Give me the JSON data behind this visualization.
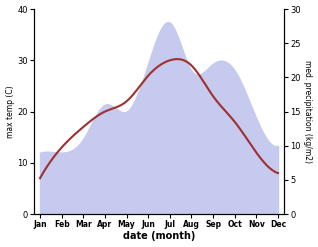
{
  "months": [
    "Jan",
    "Feb",
    "Mar",
    "Apr",
    "May",
    "Jun",
    "Jul",
    "Aug",
    "Sep",
    "Oct",
    "Nov",
    "Dec"
  ],
  "max_temp": [
    7,
    13,
    17,
    20,
    22,
    27,
    30,
    29,
    23,
    18,
    12,
    8
  ],
  "precipitation": [
    9,
    9,
    11,
    16,
    15,
    22,
    28,
    21,
    22,
    21,
    14,
    10
  ],
  "temp_color": "#a03030",
  "precip_fill_color": "#c5caee",
  "left_ylim": [
    0,
    40
  ],
  "right_ylim": [
    0,
    30
  ],
  "xlabel": "date (month)",
  "ylabel_left": "max temp (C)",
  "ylabel_right": "med. precipitation (kg/m2)",
  "bg_color": "#ffffff",
  "left_yticks": [
    0,
    10,
    20,
    30,
    40
  ],
  "right_yticks": [
    0,
    5,
    10,
    15,
    20,
    25,
    30
  ]
}
